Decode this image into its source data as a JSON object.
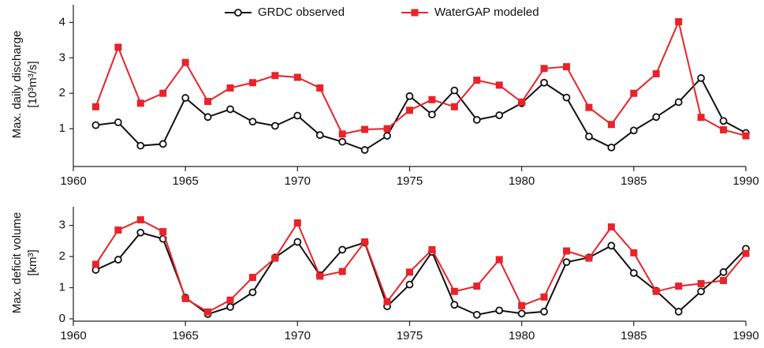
{
  "chart_data": [
    {
      "type": "line",
      "ylabel": [
        "Max. daily discharge",
        "[10³m³/s]"
      ],
      "x": [
        1961,
        1962,
        1963,
        1964,
        1965,
        1966,
        1967,
        1968,
        1969,
        1970,
        1971,
        1972,
        1973,
        1974,
        1975,
        1976,
        1977,
        1978,
        1979,
        1980,
        1981,
        1982,
        1983,
        1984,
        1985,
        1986,
        1987,
        1988,
        1989,
        1990
      ],
      "series": [
        {
          "name": "GRDC observed",
          "color": "#111111",
          "marker": "circle",
          "values": [
            1.1,
            1.18,
            0.52,
            0.57,
            1.87,
            1.33,
            1.55,
            1.2,
            1.08,
            1.37,
            0.82,
            0.63,
            0.4,
            0.8,
            1.92,
            1.4,
            2.08,
            1.25,
            1.38,
            1.72,
            2.3,
            1.88,
            0.78,
            0.47,
            0.95,
            1.33,
            1.75,
            2.43,
            1.22,
            0.88
          ]
        },
        {
          "name": "WaterGAP modeled",
          "color": "#e8232a",
          "marker": "square",
          "values": [
            1.62,
            3.3,
            1.72,
            2.0,
            2.87,
            1.77,
            2.15,
            2.3,
            2.5,
            2.45,
            2.15,
            0.85,
            0.98,
            1.0,
            1.52,
            1.82,
            1.62,
            2.37,
            2.23,
            1.75,
            2.7,
            2.75,
            1.6,
            1.12,
            2.0,
            2.55,
            4.02,
            1.32,
            0.97,
            0.8
          ]
        }
      ],
      "xlim": [
        1960,
        1990
      ],
      "xticks": [
        1960,
        1965,
        1970,
        1975,
        1980,
        1985,
        1990
      ],
      "ylim": [
        0,
        4.5
      ],
      "yticks": [
        1,
        2,
        3,
        4
      ],
      "legend": "top"
    },
    {
      "type": "line",
      "ylabel": [
        "Max. deficit volume",
        "[km³]"
      ],
      "x": [
        1961,
        1962,
        1963,
        1964,
        1965,
        1966,
        1967,
        1968,
        1969,
        1970,
        1971,
        1972,
        1973,
        1974,
        1975,
        1976,
        1977,
        1978,
        1979,
        1980,
        1981,
        1982,
        1983,
        1984,
        1985,
        1986,
        1987,
        1988,
        1989,
        1990
      ],
      "series": [
        {
          "color": "#111111",
          "marker": "circle",
          "values": [
            1.57,
            1.9,
            2.77,
            2.57,
            0.68,
            0.15,
            0.38,
            0.85,
            1.97,
            2.47,
            1.4,
            2.22,
            2.45,
            0.4,
            1.1,
            2.15,
            0.45,
            0.13,
            0.27,
            0.17,
            0.23,
            1.82,
            1.97,
            2.35,
            1.47,
            0.9,
            0.23,
            0.88,
            1.5,
            2.25
          ]
        },
        {
          "color": "#e8232a",
          "marker": "square",
          "values": [
            1.75,
            2.85,
            3.18,
            2.8,
            0.65,
            0.22,
            0.6,
            1.33,
            1.95,
            3.08,
            1.37,
            1.52,
            2.47,
            0.55,
            1.5,
            2.22,
            0.88,
            1.05,
            1.9,
            0.42,
            0.7,
            2.18,
            1.95,
            2.95,
            2.12,
            0.88,
            1.05,
            1.13,
            1.23,
            2.1
          ]
        }
      ],
      "xlim": [
        1960,
        1990
      ],
      "xticks": [
        1960,
        1965,
        1970,
        1975,
        1980,
        1985,
        1990
      ],
      "ylim": [
        0,
        3.6
      ],
      "yticks": [
        0,
        1,
        2,
        3
      ]
    }
  ]
}
